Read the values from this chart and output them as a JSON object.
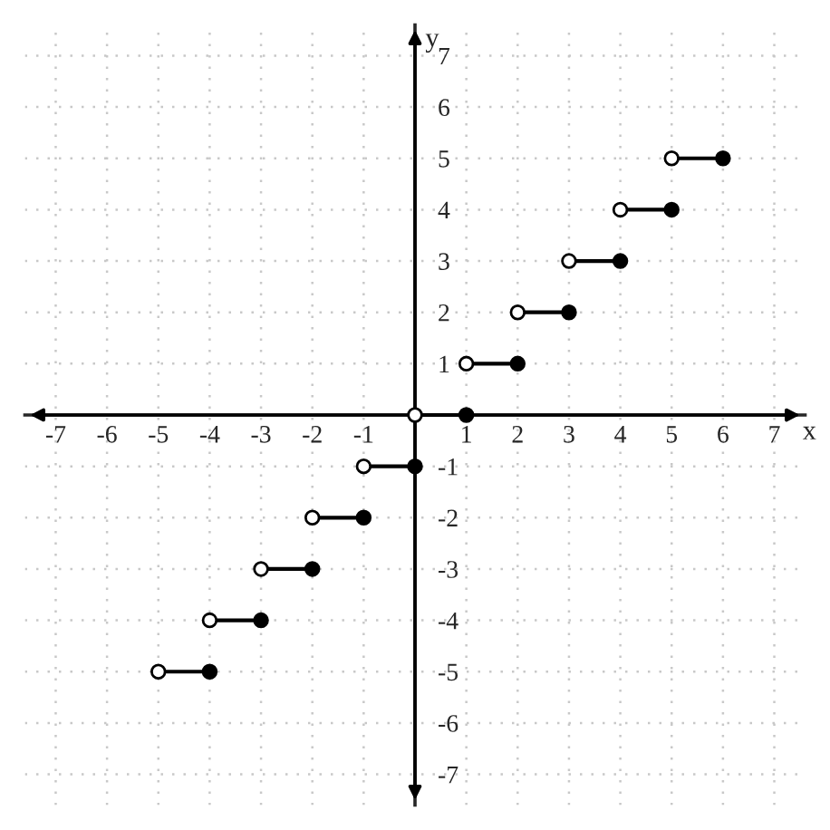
{
  "chart_data": {
    "type": "step",
    "xlabel": "x",
    "ylabel": "y",
    "xlim": [
      -7.6,
      7.6
    ],
    "ylim": [
      -7.6,
      7.6
    ],
    "xticks": [
      -7,
      -6,
      -5,
      -4,
      -3,
      -2,
      -1,
      1,
      2,
      3,
      4,
      5,
      6,
      7
    ],
    "yticks": [
      -7,
      -6,
      -5,
      -4,
      -3,
      -2,
      -1,
      1,
      2,
      3,
      4,
      5,
      6,
      7
    ],
    "grid": true,
    "series": [
      {
        "marker": "none",
        "color": "#000000",
        "x": [
          -5,
          -4
        ],
        "values": [
          -5,
          -5
        ]
      },
      {
        "marker": "none",
        "color": "#000000",
        "x": [
          -4,
          -3
        ],
        "values": [
          -4,
          -4
        ]
      },
      {
        "marker": "none",
        "color": "#000000",
        "x": [
          -3,
          -2
        ],
        "values": [
          -3,
          -3
        ]
      },
      {
        "marker": "none",
        "color": "#000000",
        "x": [
          -2,
          -1
        ],
        "values": [
          -2,
          -2
        ]
      },
      {
        "marker": "none",
        "color": "#000000",
        "x": [
          -1,
          0
        ],
        "values": [
          -1,
          -1
        ]
      },
      {
        "marker": "none",
        "color": "#000000",
        "x": [
          0,
          1
        ],
        "values": [
          0,
          0
        ]
      },
      {
        "marker": "none",
        "color": "#000000",
        "x": [
          1,
          2
        ],
        "values": [
          1,
          1
        ]
      },
      {
        "marker": "none",
        "color": "#000000",
        "x": [
          2,
          3
        ],
        "values": [
          2,
          2
        ]
      },
      {
        "marker": "none",
        "color": "#000000",
        "x": [
          3,
          4
        ],
        "values": [
          3,
          3
        ]
      },
      {
        "marker": "none",
        "color": "#000000",
        "x": [
          4,
          5
        ],
        "values": [
          4,
          4
        ]
      },
      {
        "marker": "none",
        "color": "#000000",
        "x": [
          5,
          6
        ],
        "values": [
          5,
          5
        ]
      },
      {
        "type": "scatter",
        "marker": "circle",
        "color": "#ffffff",
        "x": [
          -5,
          -4,
          -3,
          -2,
          -1,
          0,
          1,
          2,
          3,
          4,
          5
        ],
        "values": [
          -5,
          -4,
          -3,
          -2,
          -1,
          0,
          1,
          2,
          3,
          4,
          5
        ]
      },
      {
        "type": "scatter",
        "marker": "circle",
        "color": "#000000",
        "x": [
          -4,
          -3,
          -2,
          -1,
          0,
          1,
          2,
          3,
          4,
          5,
          6
        ],
        "values": [
          -5,
          -4,
          -3,
          -2,
          -1,
          0,
          1,
          2,
          3,
          4,
          5
        ]
      }
    ]
  }
}
